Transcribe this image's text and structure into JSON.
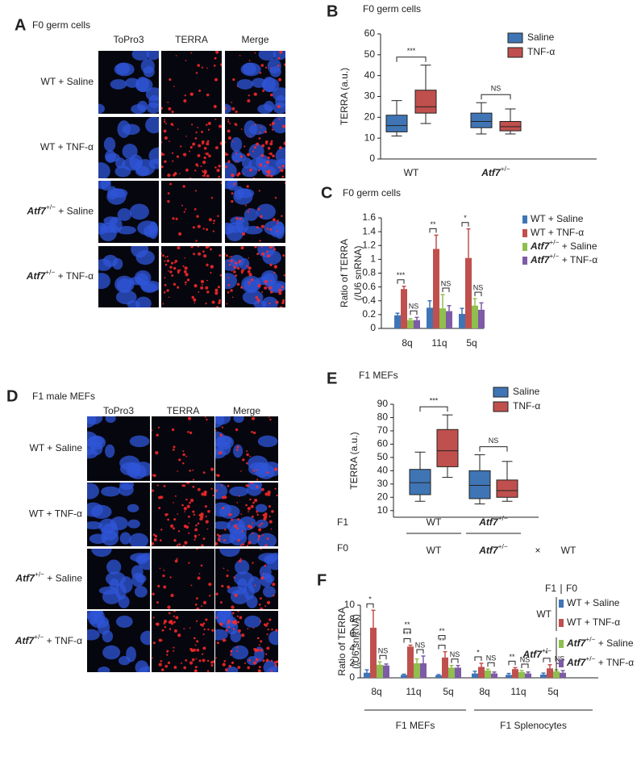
{
  "panel_a": {
    "label": "A",
    "title": "F0 germ cells",
    "columns": [
      "ToPro3",
      "TERRA",
      "Merge"
    ],
    "rows": [
      "WT + Saline",
      "WT + TNF-α",
      "Atf7+/− + Saline",
      "Atf7+/− + TNF-α"
    ]
  },
  "panel_d": {
    "label": "D",
    "title": "F1 male MEFs",
    "columns": [
      "ToPro3",
      "TERRA",
      "Merge"
    ],
    "rows": [
      "WT + Saline",
      "WT + TNF-α",
      "Atf7+/− + Saline",
      "Atf7+/− + TNF-α"
    ]
  },
  "chart_data": [
    {
      "type": "box",
      "label": "B",
      "title": "F0 germ cells",
      "ylabel": [
        "TERRA (a.u.)"
      ],
      "categories": [
        "WT",
        "Atf7+/−"
      ],
      "ylim": [
        0,
        60
      ],
      "yticks": [
        0,
        10,
        20,
        30,
        40,
        50,
        60
      ],
      "series": [
        {
          "name": "Saline",
          "color": "#3f75b5",
          "values": [
            [
              11,
              13,
              16,
              21,
              28
            ],
            [
              12,
              15,
              18,
              22,
              27
            ]
          ]
        },
        {
          "name": "TNF-α",
          "color": "#c0504d",
          "values": [
            [
              17,
              22,
              25,
              33,
              45
            ],
            [
              12,
              13.5,
              15.5,
              18,
              24
            ]
          ]
        }
      ],
      "significance": [
        "***",
        "NS"
      ]
    },
    {
      "type": "bar",
      "label": "C",
      "title": "F0 germ cells",
      "ylabel": [
        "Ratio of TERRA",
        "(/U6 snRNA)"
      ],
      "categories": [
        "8q",
        "11q",
        "5q"
      ],
      "ylim": [
        0,
        1.6
      ],
      "yticks": [
        0,
        0.2,
        0.4,
        0.6,
        0.8,
        1,
        1.2,
        1.4,
        1.6
      ],
      "series": [
        {
          "name": "WT + Saline",
          "color": "#3f75b5",
          "values": [
            0.19,
            0.3,
            0.21
          ],
          "errors": [
            0.03,
            0.1,
            0.08
          ]
        },
        {
          "name": "WT + TNF-α",
          "color": "#c0504d",
          "values": [
            0.57,
            1.15,
            1.02
          ],
          "errors": [
            0.04,
            0.2,
            0.42
          ]
        },
        {
          "name": "Atf7+/− + Saline",
          "color": "#8fbf4e",
          "values": [
            0.12,
            0.29,
            0.33
          ],
          "errors": [
            0.02,
            0.2,
            0.1
          ]
        },
        {
          "name": "Atf7+/− + TNF-α",
          "color": "#7d5ba6",
          "values": [
            0.12,
            0.25,
            0.27
          ],
          "errors": [
            0.04,
            0.08,
            0.1
          ]
        }
      ],
      "significance": [
        [
          "***",
          "NS"
        ],
        [
          "**",
          "NS"
        ],
        [
          "*",
          "NS"
        ]
      ]
    },
    {
      "type": "box",
      "label": "E",
      "title": "F1 MEFs",
      "ylabel": [
        "TERRA (a.u.)"
      ],
      "categories": [
        "WT",
        "Atf7+/−"
      ],
      "row_label": "F1",
      "f0_label": "F0",
      "f0_categories": [
        "WT",
        "Atf7+/−",
        "×",
        "WT"
      ],
      "ylim": [
        5,
        90
      ],
      "yticks": [
        10,
        20,
        30,
        40,
        50,
        60,
        70,
        80,
        90
      ],
      "series": [
        {
          "name": "Saline",
          "color": "#3f75b5",
          "values": [
            [
              17,
              22,
              31,
              41,
              54
            ],
            [
              15,
              19,
              29,
              40,
              52
            ]
          ]
        },
        {
          "name": "TNF-α",
          "color": "#c0504d",
          "values": [
            [
              35,
              43,
              55,
              71,
              82
            ],
            [
              17,
              20,
              25,
              33,
              47
            ]
          ]
        }
      ],
      "significance": [
        "***",
        "NS"
      ]
    },
    {
      "type": "bar",
      "label": "F",
      "ylabel": [
        "Ratio of TERRA",
        "(/U6 snRNA)"
      ],
      "categories": [
        "8q",
        "11q",
        "5q",
        "8q",
        "11q",
        "5q"
      ],
      "groups": [
        "F1 MEFs",
        "F1 Splenocytes"
      ],
      "legend_header": [
        "F1",
        "F0"
      ],
      "legend_groups": [
        "WT",
        "Atf7+/−"
      ],
      "ylim": [
        0,
        10
      ],
      "yticks": [
        0,
        2,
        4,
        6,
        8,
        10
      ],
      "series": [
        {
          "name": "WT + Saline",
          "color": "#3f75b5",
          "values": [
            0.7,
            0.4,
            0.35,
            0.6,
            0.4,
            0.45
          ],
          "errors": [
            0.4,
            0.1,
            0.1,
            0.3,
            0.2,
            0.2
          ]
        },
        {
          "name": "WT + TNF-α",
          "color": "#c0504d",
          "values": [
            6.9,
            4.3,
            2.8,
            1.5,
            1.2,
            1.3
          ],
          "errors": [
            2.4,
            0.2,
            0.8,
            0.5,
            0.2,
            0.5
          ]
        },
        {
          "name": "Atf7+/− + Saline",
          "color": "#8fbf4e",
          "values": [
            1.8,
            2.0,
            1.4,
            1.0,
            0.8,
            0.9
          ],
          "errors": [
            0.4,
            0.6,
            0.3,
            0.2,
            0.2,
            0.2
          ]
        },
        {
          "name": "Atf7+/− + TNF-α",
          "color": "#7d5ba6",
          "values": [
            1.7,
            2.0,
            1.4,
            0.6,
            0.6,
            0.7
          ],
          "errors": [
            0.2,
            1.0,
            0.3,
            0.2,
            0.2,
            0.3
          ]
        }
      ],
      "significance": [
        [
          "*",
          "NS"
        ],
        [
          "**",
          "***",
          "NS"
        ],
        [
          "**",
          "**",
          "NS"
        ],
        [
          "*",
          "NS"
        ],
        [
          "**",
          "NS"
        ],
        [
          "*",
          "NS"
        ]
      ]
    }
  ]
}
